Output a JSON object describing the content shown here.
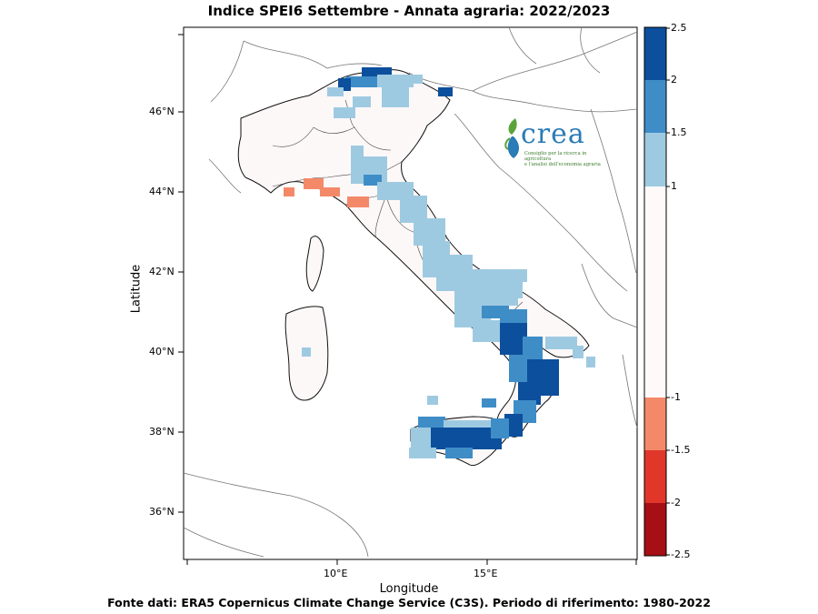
{
  "title": "Indice SPEI6 Settembre - Annata agraria: 2022/2023",
  "footer": "Fonte dati: ERA5 Copernicus Climate Change Service (C3S). Periodo di riferimento: 1980-2022",
  "axes": {
    "xlabel": "Longitude",
    "ylabel": "Latitude",
    "xticks": [
      "10°E",
      "15°E"
    ],
    "yticks": [
      "46°N",
      "44°N",
      "42°N",
      "40°N",
      "38°N",
      "36°N"
    ]
  },
  "logo": {
    "name": "crea",
    "subtitle_line1": "Consiglio per la ricerca in agricoltura",
    "subtitle_line2": "e l'analisi dell'economia agraria"
  },
  "colorbar": {
    "labels": [
      "2.5",
      "2",
      "1.5",
      "1",
      "-1",
      "-1.5",
      "-2",
      "-2.5"
    ],
    "colors": [
      "#0c4f9c",
      "#3f8dc7",
      "#9ecae1",
      "#fffafa",
      "#f4896a",
      "#e0372a",
      "#a50f15"
    ]
  },
  "map_colors": {
    "dark_blue": "#0c4f9c",
    "mid_blue": "#3f8dc7",
    "light_blue": "#9ecae1",
    "light_red": "#f4896a",
    "land_neutral": "#fdf8f8"
  }
}
